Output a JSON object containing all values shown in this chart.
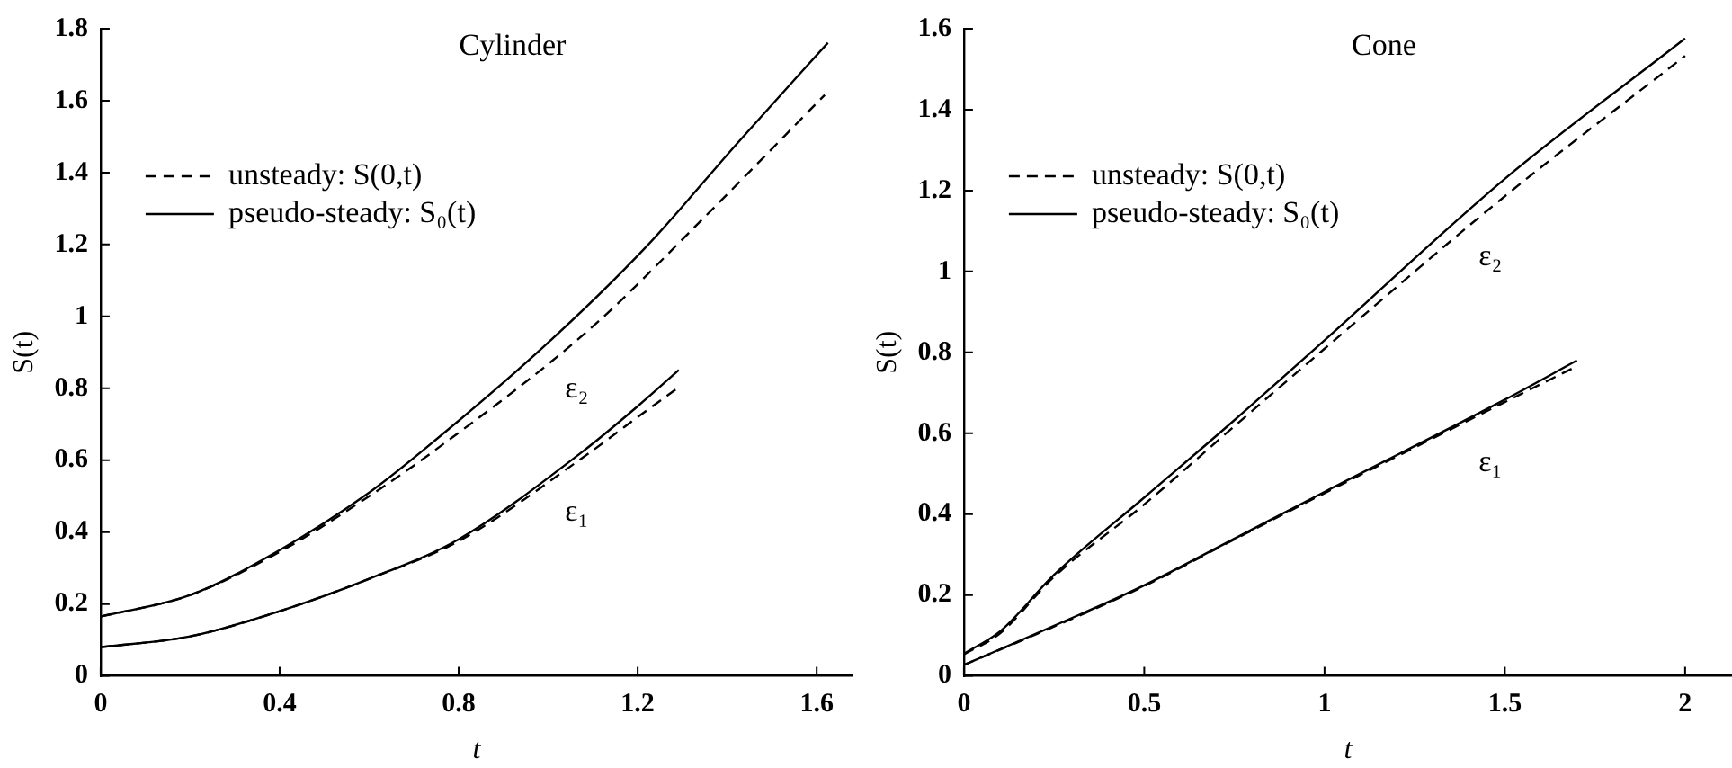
{
  "chart_data": [
    {
      "type": "line",
      "title": "Cylinder",
      "xlabel": "t",
      "ylabel": "S(t)",
      "xlim": [
        0,
        1.68
      ],
      "xticks": [
        0,
        0.4,
        0.8,
        1.2,
        1.6
      ],
      "ylim": [
        0,
        1.8
      ],
      "yticks": [
        0,
        0.2,
        0.4,
        0.6,
        0.8,
        1,
        1.2,
        1.4,
        1.6,
        1.8
      ],
      "grid": false,
      "legend": "top left",
      "marker": "none",
      "series": [
        {
          "name": "unsteady: S(0,t)",
          "color": "#000000",
          "line_style": "dashed",
          "x": [
            0,
            0.2,
            0.4,
            0.6,
            0.743,
            1.096,
            1.35,
            1.618
          ],
          "values": [
            0.165,
            0.225,
            0.345,
            0.5,
            0.624,
            0.968,
            1.277,
            1.616
          ]
        },
        {
          "name": "pseudo-steady: S₀(t)",
          "color": "#000000",
          "line_style": "solid",
          "x": [
            0,
            0.2,
            0.4,
            0.6,
            0.717,
            0.993,
            1.22,
            1.425,
            1.625
          ],
          "values": [
            0.165,
            0.225,
            0.35,
            0.51,
            0.624,
            0.919,
            1.195,
            1.485,
            1.761
          ]
        },
        {
          "color": "#000000",
          "line_style": "dashed",
          "x": [
            0,
            0.2,
            0.4,
            0.6,
            0.8,
            1.096,
            1.2,
            1.292
          ],
          "values": [
            0.08,
            0.11,
            0.18,
            0.27,
            0.375,
            0.624,
            0.72,
            0.803
          ]
        },
        {
          "color": "#000000",
          "line_style": "solid",
          "x": [
            0,
            0.2,
            0.4,
            0.6,
            0.8,
            1.077,
            1.2,
            1.292
          ],
          "values": [
            0.08,
            0.11,
            0.18,
            0.27,
            0.38,
            0.624,
            0.75,
            0.851
          ]
        }
      ],
      "annotations": [
        "ε₂",
        "ε₁"
      ]
    },
    {
      "type": "line",
      "title": "Cone",
      "xlabel": "t",
      "ylabel": "S(t)",
      "xlim": [
        0,
        2.13
      ],
      "xticks": [
        0,
        0.5,
        1,
        1.5,
        2
      ],
      "ylim": [
        0,
        1.6
      ],
      "yticks": [
        0,
        0.2,
        0.4,
        0.6,
        0.8,
        1,
        1.2,
        1.4,
        1.6
      ],
      "grid": false,
      "legend": "top left",
      "marker": "none",
      "series": [
        {
          "name": "unsteady: S(0,t)",
          "color": "#000000",
          "line_style": "dashed",
          "x": [
            0,
            0.1,
            0.25,
            0.5,
            0.747,
            1,
            1.5,
            2
          ],
          "values": [
            0.053,
            0.105,
            0.245,
            0.424,
            0.615,
            0.809,
            1.186,
            1.533
          ]
        },
        {
          "name": "pseudo-steady: S₀(t)",
          "color": "#000000",
          "line_style": "solid",
          "x": [
            0,
            0.1,
            0.25,
            0.5,
            0.747,
            1,
            1.5,
            2
          ],
          "values": [
            0.055,
            0.11,
            0.25,
            0.441,
            0.63,
            0.83,
            1.229,
            1.576
          ]
        },
        {
          "color": "#000000",
          "line_style": "dashed",
          "x": [
            0,
            0.25,
            0.5,
            0.747,
            1,
            1.5,
            1.7
          ],
          "values": [
            0.027,
            0.122,
            0.222,
            0.336,
            0.452,
            0.677,
            0.766
          ]
        },
        {
          "color": "#000000",
          "line_style": "solid",
          "x": [
            0,
            0.25,
            0.5,
            0.747,
            1,
            1.5,
            1.7
          ],
          "values": [
            0.027,
            0.124,
            0.224,
            0.338,
            0.455,
            0.683,
            0.78
          ]
        }
      ],
      "annotations": [
        "ε₂",
        "ε₁"
      ]
    }
  ]
}
